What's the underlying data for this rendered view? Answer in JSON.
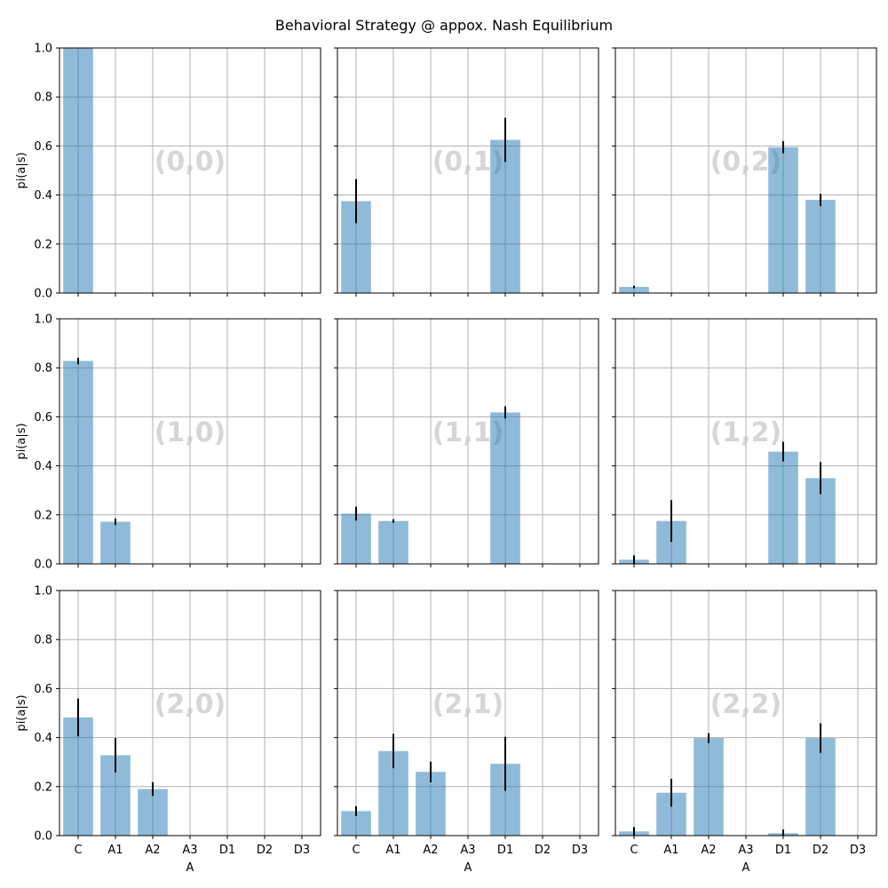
{
  "figure": {
    "title": "Behavioral Strategy @ appox. Nash Equilibrium"
  },
  "chart_data": {
    "type": "bar",
    "title": "Behavioral Strategy @ appox. Nash Equilibrium",
    "categories": [
      "C",
      "A1",
      "A2",
      "A3",
      "D1",
      "D2",
      "D3"
    ],
    "xlabel": "A",
    "ylabel": "pi(a|s)",
    "ylim": [
      0,
      1.0
    ],
    "yticks": [
      "0.0",
      "0.2",
      "0.4",
      "0.6",
      "0.8",
      "1.0"
    ],
    "grid": true,
    "bar_color": "#1f77b4",
    "grid_rows": 3,
    "grid_cols": 3,
    "panels": [
      {
        "state": "(0,0)",
        "values": [
          1.0,
          0,
          0,
          0,
          0,
          0,
          0
        ],
        "errors": [
          0,
          0,
          0,
          0,
          0,
          0,
          0
        ]
      },
      {
        "state": "(0,1)",
        "values": [
          0.375,
          0,
          0,
          0,
          0.625,
          0,
          0
        ],
        "errors": [
          0.09,
          0,
          0,
          0,
          0.09,
          0,
          0
        ]
      },
      {
        "state": "(0,2)",
        "values": [
          0.025,
          0,
          0,
          0,
          0.595,
          0.38,
          0
        ],
        "errors": [
          0.005,
          0,
          0,
          0,
          0.025,
          0.025,
          0
        ]
      },
      {
        "state": "(1,0)",
        "values": [
          0.828,
          0.172,
          0,
          0,
          0,
          0,
          0
        ],
        "errors": [
          0.013,
          0.013,
          0,
          0,
          0,
          0,
          0
        ]
      },
      {
        "state": "(1,1)",
        "values": [
          0.205,
          0.175,
          0,
          0,
          0.618,
          0,
          0
        ],
        "errors": [
          0.028,
          0.007,
          0,
          0,
          0.025,
          0,
          0
        ]
      },
      {
        "state": "(1,2)",
        "values": [
          0.017,
          0.175,
          0,
          0,
          0.458,
          0.35,
          0
        ],
        "errors": [
          0.018,
          0.085,
          0,
          0,
          0.04,
          0.065,
          0
        ]
      },
      {
        "state": "(2,0)",
        "values": [
          0.482,
          0.328,
          0.19,
          0,
          0,
          0,
          0
        ],
        "errors": [
          0.077,
          0.07,
          0.028,
          0,
          0,
          0,
          0
        ]
      },
      {
        "state": "(2,1)",
        "values": [
          0.1,
          0.345,
          0.26,
          0,
          0.293,
          0,
          0
        ],
        "errors": [
          0.02,
          0.07,
          0.042,
          0,
          0.11,
          0,
          0
        ]
      },
      {
        "state": "(2,2)",
        "values": [
          0.017,
          0.175,
          0.398,
          0,
          0.01,
          0.398,
          0
        ],
        "errors": [
          0.018,
          0.057,
          0.02,
          0,
          0.015,
          0.06,
          0
        ]
      }
    ]
  }
}
